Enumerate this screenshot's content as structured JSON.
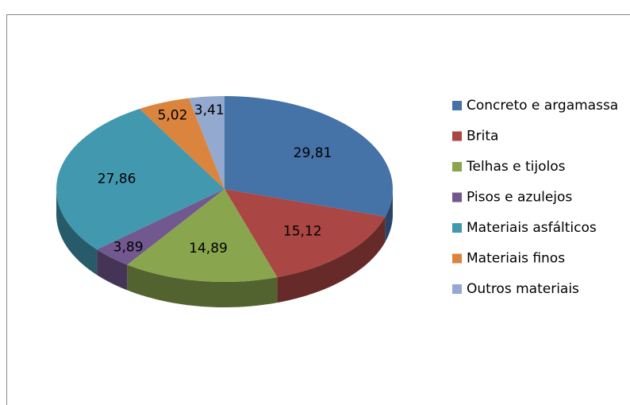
{
  "chart_data": {
    "type": "pie3d",
    "categories": [
      "Concreto e argamassa",
      "Brita",
      "Telhas e tijolos",
      "Pisos e azulejos",
      "Materiais asfálticos",
      "Materiais finos",
      "Outros materiais"
    ],
    "values": [
      29.81,
      15.12,
      14.89,
      3.89,
      27.86,
      5.02,
      3.41
    ],
    "value_labels": [
      "29,81",
      "15,12",
      "14,89",
      "3,89",
      "27,86",
      "5,02",
      "3,41"
    ],
    "colors": [
      "#4572a7",
      "#aa4643",
      "#89a54e",
      "#71588f",
      "#4198af",
      "#db843d",
      "#93a9cf"
    ],
    "legend": "right"
  }
}
